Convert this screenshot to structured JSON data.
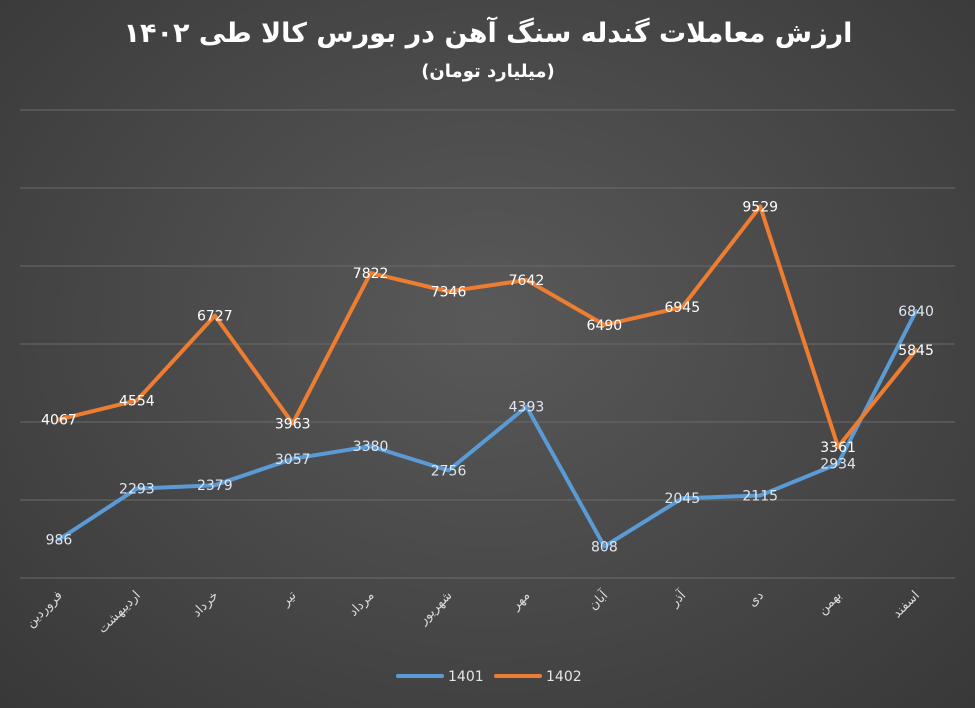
{
  "chart_data": {
    "type": "line",
    "title": "ارزش معاملات گندله سنگ آهن در بورس کالا طی ۱۴۰۲",
    "subtitle": "(میلیارد تومان)",
    "categories": [
      "فروردین",
      "اردیبهشت",
      "خرداد",
      "تیر",
      "مرداد",
      "شهریور",
      "مهر",
      "آبان",
      "آذر",
      "دی",
      "بهمن",
      "اسفند"
    ],
    "series": [
      {
        "name": "1401",
        "color": "#5b9bd5",
        "values": [
          986,
          2293,
          2379,
          3057,
          3380,
          2756,
          4393,
          808,
          2045,
          2115,
          2934,
          6840
        ]
      },
      {
        "name": "1402",
        "color": "#ed7d31",
        "values": [
          4067,
          4554,
          6727,
          3963,
          7822,
          7346,
          7642,
          6490,
          6945,
          9529,
          3361,
          5845
        ]
      }
    ],
    "ylim": [
      0,
      12000
    ],
    "grid": true,
    "legend_position": "bottom"
  }
}
